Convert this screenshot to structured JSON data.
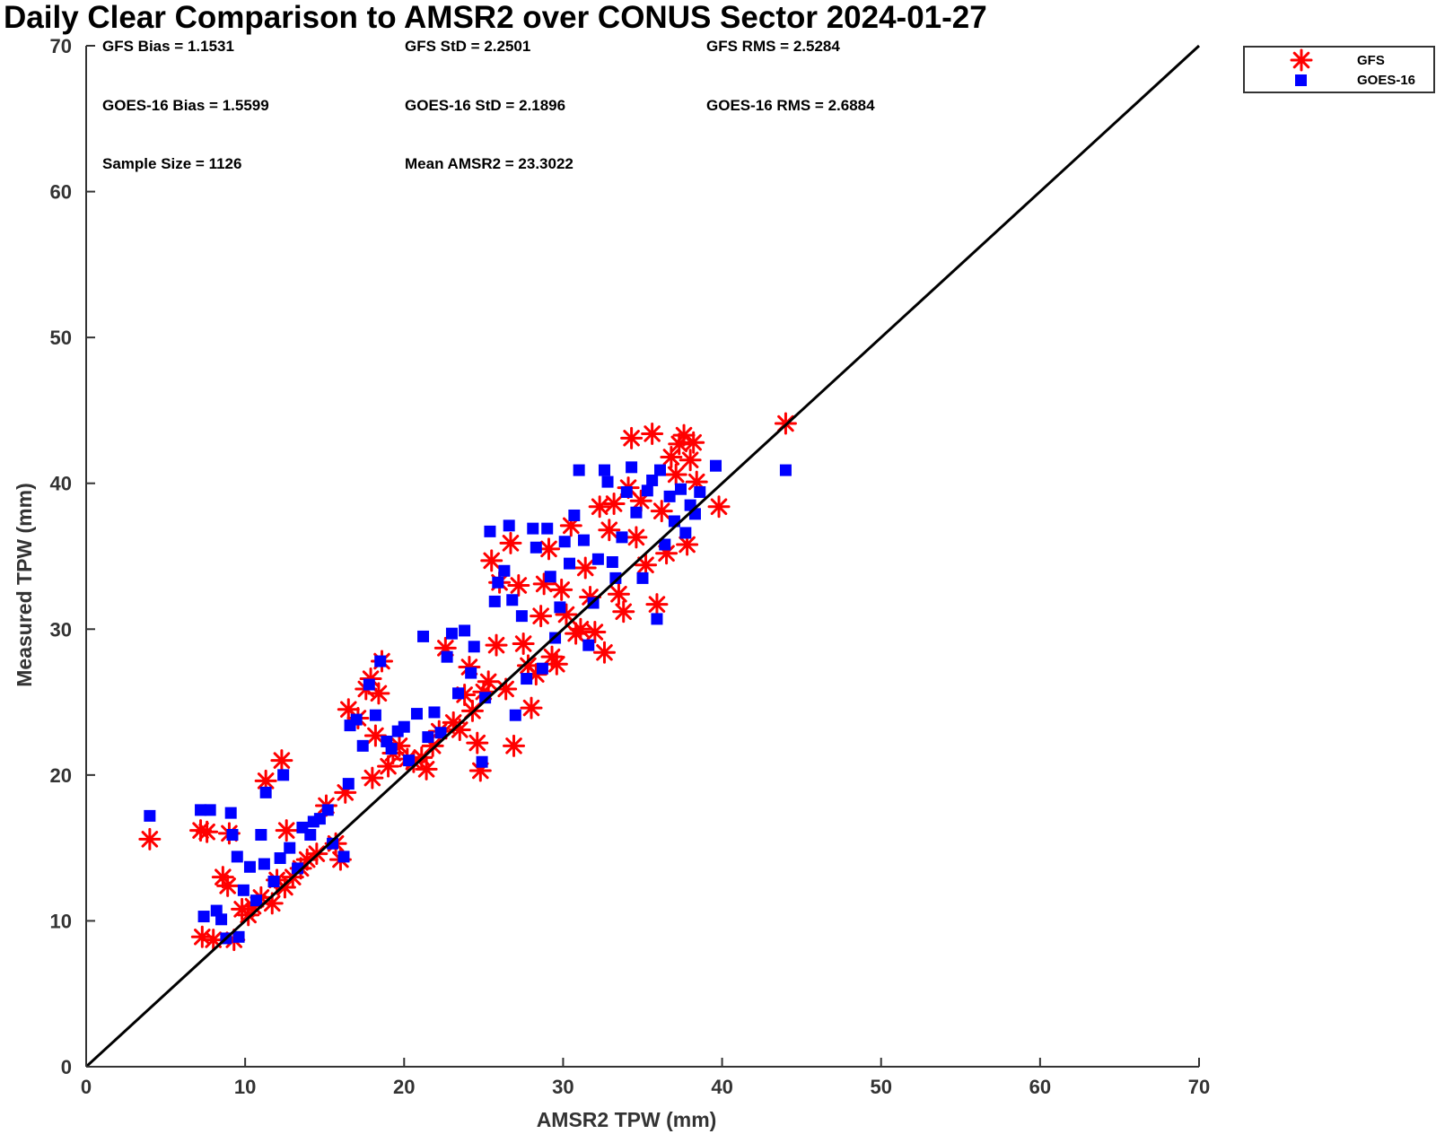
{
  "chart_data": {
    "type": "scatter",
    "title": "Daily Clear Comparison to AMSR2 over CONUS Sector 2024-01-27",
    "xlabel": "AMSR2 TPW (mm)",
    "ylabel": "Measured TPW (mm)",
    "xlim": [
      0,
      70
    ],
    "ylim": [
      0,
      70
    ],
    "x_ticks": [
      "0",
      "10",
      "20",
      "30",
      "40",
      "50",
      "60",
      "70"
    ],
    "y_ticks": [
      "0",
      "10",
      "20",
      "30",
      "40",
      "50",
      "60",
      "70"
    ],
    "grid": false,
    "legend_position": "outside top-right",
    "reference_line": {
      "from": [
        0,
        0
      ],
      "to": [
        70,
        70
      ],
      "color": "#000000"
    },
    "stats": {
      "gfs_bias": "GFS Bias = 1.1531",
      "gfs_std": "GFS StD = 2.2501",
      "gfs_rms": "GFS RMS = 2.5284",
      "goes_bias": "GOES-16 Bias = 1.5599",
      "goes_std": "GOES-16 StD = 2.1896",
      "goes_rms": "GOES-16 RMS = 2.6884",
      "sample_size": "Sample Size = 1126",
      "mean_amsr2": "Mean AMSR2 = 23.3022"
    },
    "series": [
      {
        "name": "GFS",
        "marker": "asterisk",
        "color": "#ff0000",
        "points": [
          [
            4.0,
            15.6
          ],
          [
            7.2,
            16.2
          ],
          [
            7.6,
            16.1
          ],
          [
            7.3,
            8.9
          ],
          [
            8.0,
            8.7
          ],
          [
            9.3,
            8.7
          ],
          [
            8.6,
            13.0
          ],
          [
            8.9,
            12.4
          ],
          [
            9.0,
            16.0
          ],
          [
            9.8,
            10.8
          ],
          [
            10.2,
            10.4
          ],
          [
            10.5,
            11.0
          ],
          [
            11.0,
            11.6
          ],
          [
            11.3,
            19.6
          ],
          [
            12.3,
            21.0
          ],
          [
            11.7,
            11.2
          ],
          [
            12.5,
            12.3
          ],
          [
            13.0,
            13.0
          ],
          [
            13.5,
            13.6
          ],
          [
            13.9,
            14.2
          ],
          [
            12.6,
            16.2
          ],
          [
            12.0,
            12.8
          ],
          [
            14.5,
            14.6
          ],
          [
            15.1,
            17.9
          ],
          [
            15.7,
            15.3
          ],
          [
            16.0,
            14.2
          ],
          [
            16.3,
            18.8
          ],
          [
            16.5,
            24.5
          ],
          [
            17.1,
            23.9
          ],
          [
            17.6,
            25.9
          ],
          [
            17.9,
            26.6
          ],
          [
            18.0,
            19.8
          ],
          [
            18.2,
            22.7
          ],
          [
            18.4,
            25.6
          ],
          [
            18.6,
            27.8
          ],
          [
            19.0,
            20.6
          ],
          [
            19.3,
            21.5
          ],
          [
            19.7,
            22.0
          ],
          [
            20.2,
            21.1
          ],
          [
            20.6,
            20.9
          ],
          [
            21.1,
            21.2
          ],
          [
            21.4,
            20.4
          ],
          [
            21.8,
            22.0
          ],
          [
            22.2,
            23.0
          ],
          [
            22.6,
            28.7
          ],
          [
            23.1,
            23.6
          ],
          [
            23.5,
            23.1
          ],
          [
            23.8,
            25.5
          ],
          [
            24.1,
            27.4
          ],
          [
            24.3,
            24.4
          ],
          [
            24.6,
            22.2
          ],
          [
            24.8,
            20.3
          ],
          [
            25.0,
            25.7
          ],
          [
            25.3,
            26.4
          ],
          [
            25.5,
            34.7
          ],
          [
            25.8,
            28.9
          ],
          [
            26.0,
            33.2
          ],
          [
            26.4,
            25.9
          ],
          [
            26.7,
            35.9
          ],
          [
            26.9,
            22.0
          ],
          [
            27.2,
            33.0
          ],
          [
            27.5,
            29.0
          ],
          [
            27.8,
            27.5
          ],
          [
            28.0,
            24.6
          ],
          [
            28.3,
            26.9
          ],
          [
            28.6,
            30.9
          ],
          [
            28.8,
            33.1
          ],
          [
            29.1,
            35.5
          ],
          [
            29.3,
            28.1
          ],
          [
            29.6,
            27.6
          ],
          [
            29.9,
            32.7
          ],
          [
            30.2,
            31.0
          ],
          [
            30.5,
            37.1
          ],
          [
            30.8,
            29.7
          ],
          [
            31.1,
            30.0
          ],
          [
            31.4,
            34.2
          ],
          [
            31.7,
            32.2
          ],
          [
            32.0,
            29.8
          ],
          [
            32.3,
            38.4
          ],
          [
            32.6,
            28.4
          ],
          [
            32.9,
            36.8
          ],
          [
            33.2,
            38.6
          ],
          [
            33.5,
            32.4
          ],
          [
            33.8,
            31.2
          ],
          [
            34.1,
            39.7
          ],
          [
            34.3,
            43.1
          ],
          [
            34.6,
            36.3
          ],
          [
            34.9,
            38.8
          ],
          [
            35.2,
            34.4
          ],
          [
            35.6,
            43.4
          ],
          [
            35.9,
            31.7
          ],
          [
            36.2,
            38.1
          ],
          [
            36.5,
            35.2
          ],
          [
            36.8,
            41.8
          ],
          [
            37.1,
            40.6
          ],
          [
            37.3,
            42.7
          ],
          [
            37.6,
            43.3
          ],
          [
            37.8,
            35.8
          ],
          [
            38.0,
            41.6
          ],
          [
            38.2,
            42.8
          ],
          [
            38.4,
            40.1
          ],
          [
            39.8,
            38.4
          ],
          [
            44.0,
            44.1
          ]
        ]
      },
      {
        "name": "GOES-16",
        "marker": "square",
        "color": "#0000ff",
        "points": [
          [
            4.0,
            17.2
          ],
          [
            7.2,
            17.6
          ],
          [
            7.8,
            17.6
          ],
          [
            7.4,
            10.3
          ],
          [
            8.2,
            10.7
          ],
          [
            8.5,
            10.1
          ],
          [
            8.8,
            8.8
          ],
          [
            9.1,
            17.4
          ],
          [
            9.6,
            8.9
          ],
          [
            9.2,
            15.9
          ],
          [
            9.5,
            14.4
          ],
          [
            9.9,
            12.1
          ],
          [
            10.3,
            13.7
          ],
          [
            10.7,
            11.4
          ],
          [
            11.0,
            15.9
          ],
          [
            11.2,
            13.9
          ],
          [
            11.3,
            18.8
          ],
          [
            11.8,
            12.7
          ],
          [
            12.2,
            14.3
          ],
          [
            12.4,
            20.0
          ],
          [
            12.8,
            15.0
          ],
          [
            13.3,
            13.6
          ],
          [
            13.6,
            16.4
          ],
          [
            14.1,
            15.9
          ],
          [
            14.3,
            16.8
          ],
          [
            14.7,
            17.0
          ],
          [
            15.2,
            17.6
          ],
          [
            15.5,
            15.3
          ],
          [
            16.2,
            14.4
          ],
          [
            16.5,
            19.4
          ],
          [
            16.6,
            23.4
          ],
          [
            17.0,
            23.8
          ],
          [
            17.4,
            22.0
          ],
          [
            17.8,
            26.2
          ],
          [
            18.2,
            24.1
          ],
          [
            18.5,
            27.8
          ],
          [
            18.9,
            22.3
          ],
          [
            19.2,
            21.8
          ],
          [
            19.6,
            23.0
          ],
          [
            20.0,
            23.3
          ],
          [
            20.3,
            21.0
          ],
          [
            20.8,
            24.2
          ],
          [
            21.2,
            29.5
          ],
          [
            21.5,
            22.6
          ],
          [
            21.9,
            24.3
          ],
          [
            22.3,
            22.9
          ],
          [
            22.7,
            28.1
          ],
          [
            23.0,
            29.7
          ],
          [
            23.4,
            25.6
          ],
          [
            23.8,
            29.9
          ],
          [
            24.2,
            27.0
          ],
          [
            24.4,
            28.8
          ],
          [
            24.9,
            20.9
          ],
          [
            25.1,
            25.3
          ],
          [
            25.4,
            36.7
          ],
          [
            25.7,
            31.9
          ],
          [
            25.9,
            33.2
          ],
          [
            26.3,
            34.0
          ],
          [
            26.6,
            37.1
          ],
          [
            26.8,
            32.0
          ],
          [
            27.0,
            24.1
          ],
          [
            27.4,
            30.9
          ],
          [
            27.7,
            26.6
          ],
          [
            28.1,
            36.9
          ],
          [
            28.3,
            35.6
          ],
          [
            28.7,
            27.3
          ],
          [
            29.0,
            36.9
          ],
          [
            29.2,
            33.6
          ],
          [
            29.5,
            29.4
          ],
          [
            29.8,
            31.5
          ],
          [
            30.1,
            36.0
          ],
          [
            30.4,
            34.5
          ],
          [
            30.7,
            37.8
          ],
          [
            31.0,
            40.9
          ],
          [
            31.3,
            36.1
          ],
          [
            31.6,
            28.9
          ],
          [
            31.9,
            31.8
          ],
          [
            32.2,
            34.8
          ],
          [
            32.6,
            40.9
          ],
          [
            32.8,
            40.1
          ],
          [
            33.1,
            34.6
          ],
          [
            33.3,
            33.5
          ],
          [
            33.7,
            36.3
          ],
          [
            34.0,
            39.4
          ],
          [
            34.3,
            41.1
          ],
          [
            34.6,
            38.0
          ],
          [
            35.0,
            33.5
          ],
          [
            35.3,
            39.5
          ],
          [
            35.6,
            40.2
          ],
          [
            35.9,
            30.7
          ],
          [
            36.1,
            40.9
          ],
          [
            36.4,
            35.8
          ],
          [
            36.7,
            39.1
          ],
          [
            37.0,
            37.4
          ],
          [
            37.4,
            39.6
          ],
          [
            37.7,
            36.6
          ],
          [
            38.0,
            38.5
          ],
          [
            38.3,
            37.9
          ],
          [
            38.6,
            39.4
          ],
          [
            39.6,
            41.2
          ],
          [
            44.0,
            40.9
          ]
        ]
      }
    ]
  }
}
